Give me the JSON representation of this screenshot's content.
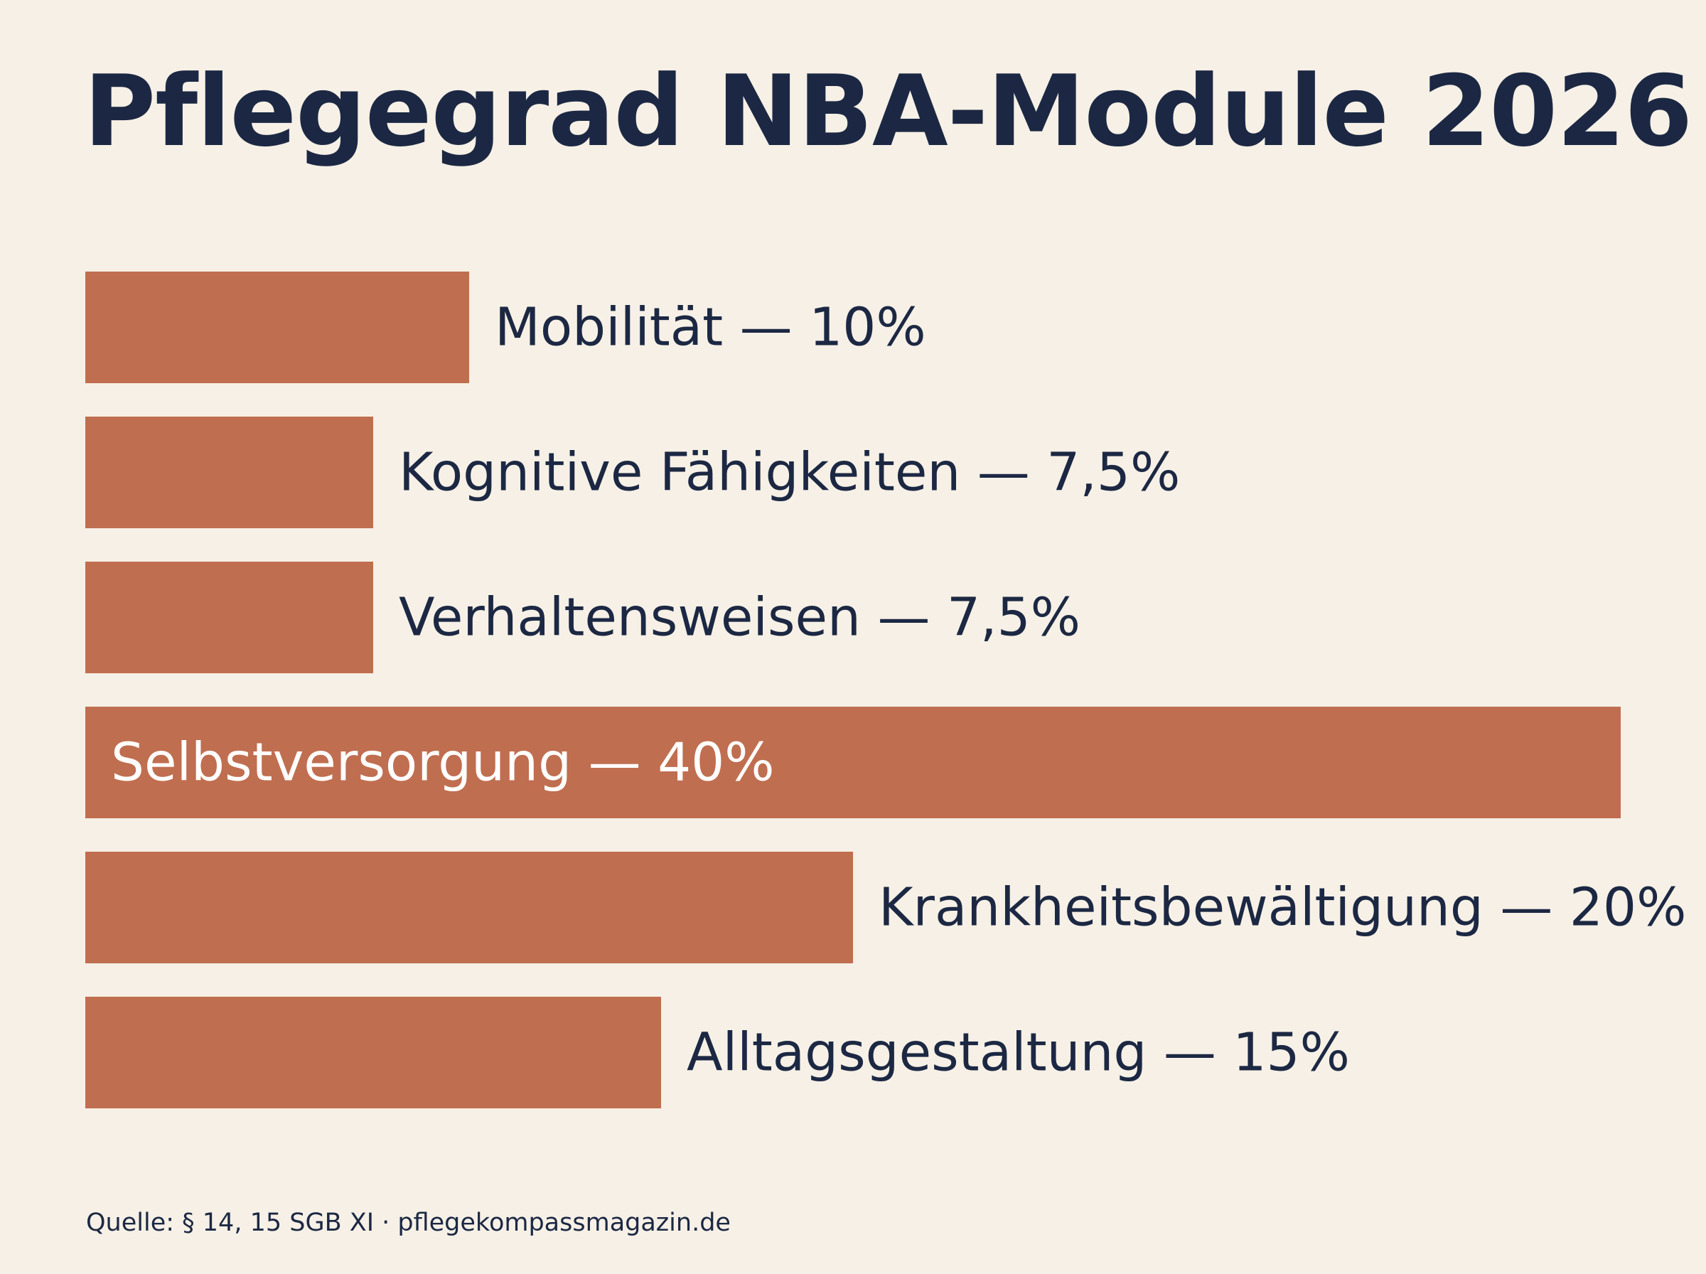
{
  "chart_data": {
    "type": "bar",
    "orientation": "horizontal",
    "title": "Pflegegrad NBA-Module 2026",
    "categories": [
      "Mobilität",
      "Kognitive Fähigkeiten",
      "Verhaltensweisen",
      "Selbstversorgung",
      "Krankheitsbewältigung",
      "Alltagsgestaltung"
    ],
    "values": [
      10,
      7.5,
      7.5,
      40,
      20,
      15
    ],
    "data_labels": [
      "Mobilität — 10%",
      "Kognitive Fähigkeiten — 7,5%",
      "Verhaltensweisen — 7,5%",
      "Selbstversorgung — 40%",
      "Krankheitsbewältigung — 20%",
      "Alltagsgestaltung — 15%"
    ],
    "unit": "%",
    "xlabel": "",
    "ylabel": "",
    "xlim": [
      0,
      40
    ],
    "grid": false,
    "legend": "none",
    "colors": {
      "bar": "#c06e50",
      "label_outside": "#1c2843",
      "label_inside": "#ffffff",
      "background": "#f6f0e6"
    }
  },
  "source": "Quelle: § 14, 15 SGB XI · pflegekompassmagazin.de"
}
